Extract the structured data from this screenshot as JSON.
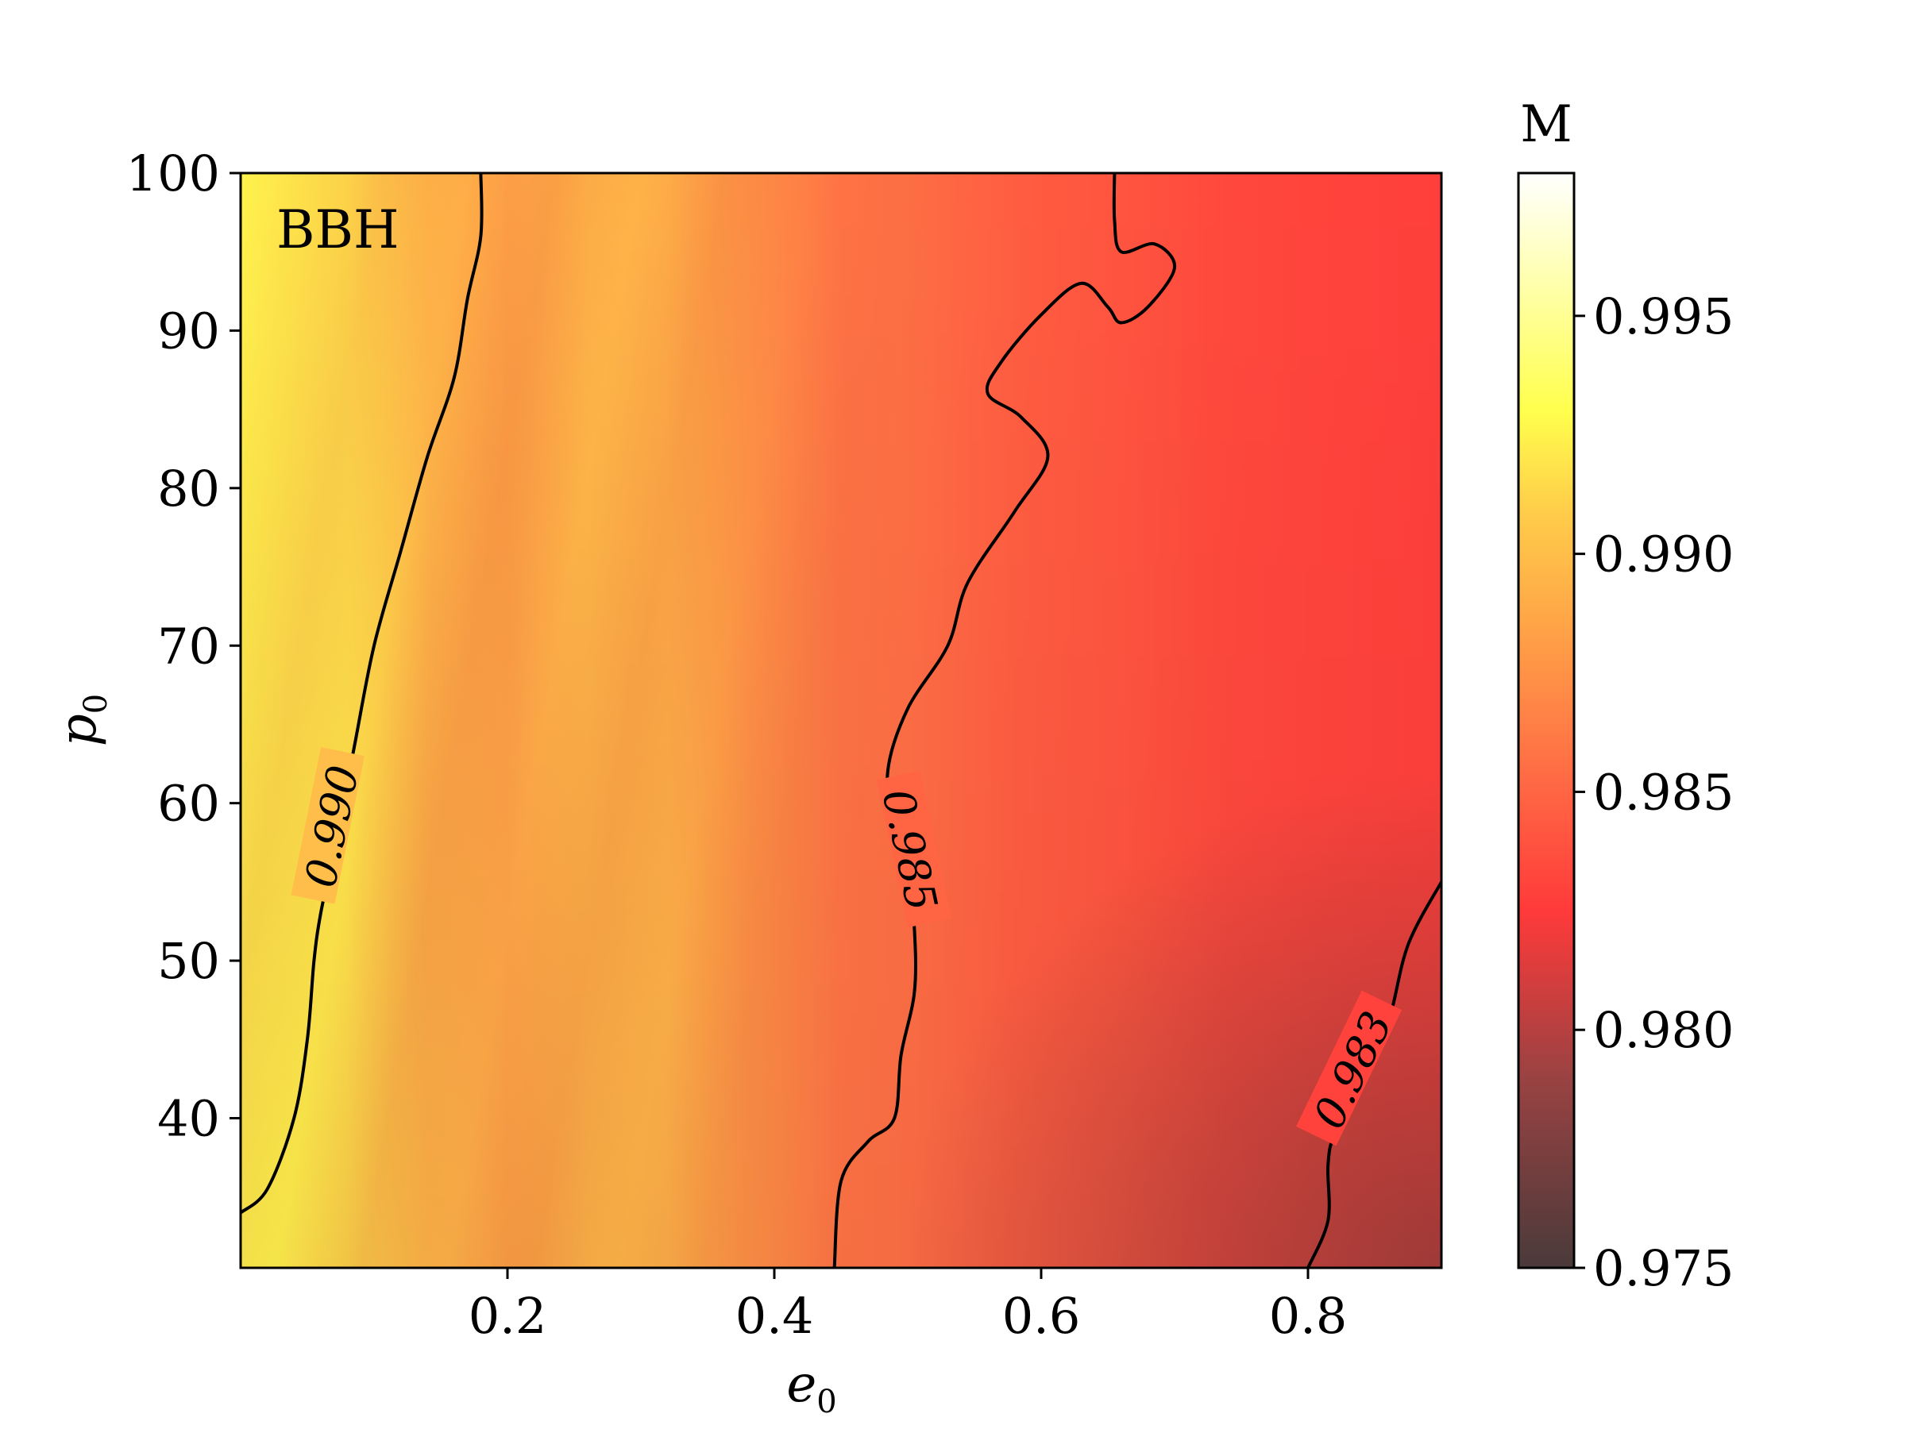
{
  "chart_data": {
    "type": "heatmap",
    "annotation": "BBH",
    "xlabel": {
      "main": "e",
      "sub": "0"
    },
    "ylabel": {
      "main": "p",
      "sub": "0"
    },
    "xlim": [
      0.0,
      0.9
    ],
    "ylim": [
      30.5,
      100
    ],
    "xticks": [
      0.2,
      0.4,
      0.6,
      0.8
    ],
    "xtick_labels": [
      "0.2",
      "0.4",
      "0.6",
      "0.8"
    ],
    "yticks": [
      40,
      50,
      60,
      70,
      80,
      90,
      100
    ],
    "ytick_labels": [
      "40",
      "50",
      "60",
      "70",
      "80",
      "90",
      "100"
    ],
    "colorbar": {
      "title": "M",
      "range": [
        0.975,
        0.998
      ],
      "ticks": [
        0.975,
        0.98,
        0.985,
        0.99,
        0.995
      ],
      "tick_labels": [
        "0.975",
        "0.980",
        "0.985",
        "0.990",
        "0.995"
      ],
      "colormap": [
        {
          "value": 0.975,
          "color": "#4a3a3a"
        },
        {
          "value": 0.979,
          "color": "#9a4242"
        },
        {
          "value": 0.9825,
          "color": "#ff3a3a"
        },
        {
          "value": 0.9855,
          "color": "#ff6e45"
        },
        {
          "value": 0.9885,
          "color": "#ffa447"
        },
        {
          "value": 0.991,
          "color": "#ffcf4a"
        },
        {
          "value": 0.993,
          "color": "#ffff4d"
        },
        {
          "value": 0.998,
          "color": "#ffffff"
        }
      ]
    },
    "contours": [
      {
        "level": 0.99,
        "label": "0.990",
        "points": [
          [
            0.0,
            34.0
          ],
          [
            0.02,
            35.5
          ],
          [
            0.04,
            40.0
          ],
          [
            0.05,
            45.0
          ],
          [
            0.055,
            50.0
          ],
          [
            0.06,
            53.0
          ],
          [
            0.07,
            57.0
          ],
          [
            0.085,
            63.5
          ],
          [
            0.1,
            70.0
          ],
          [
            0.12,
            76.0
          ],
          [
            0.14,
            82.0
          ],
          [
            0.16,
            87.0
          ],
          [
            0.17,
            92.0
          ],
          [
            0.18,
            96.0
          ],
          [
            0.18,
            100.0
          ]
        ],
        "label_at": [
          0.07,
          58.5
        ]
      },
      {
        "level": 0.985,
        "label": "0.985",
        "points": [
          [
            0.445,
            30.5
          ],
          [
            0.45,
            36.0
          ],
          [
            0.47,
            38.5
          ],
          [
            0.49,
            40.0
          ],
          [
            0.495,
            44.0
          ],
          [
            0.505,
            48.0
          ],
          [
            0.505,
            52.0
          ],
          [
            0.5,
            56.0
          ],
          [
            0.49,
            58.0
          ],
          [
            0.485,
            62.0
          ],
          [
            0.5,
            66.0
          ],
          [
            0.53,
            70.0
          ],
          [
            0.545,
            74.0
          ],
          [
            0.58,
            78.5
          ],
          [
            0.605,
            82.0
          ],
          [
            0.585,
            84.5
          ],
          [
            0.56,
            86.0
          ],
          [
            0.57,
            88.0
          ],
          [
            0.6,
            91.0
          ],
          [
            0.63,
            93.0
          ],
          [
            0.65,
            91.5
          ],
          [
            0.66,
            90.5
          ],
          [
            0.68,
            91.5
          ],
          [
            0.7,
            94.0
          ],
          [
            0.685,
            95.5
          ],
          [
            0.66,
            95.0
          ],
          [
            0.655,
            97.0
          ],
          [
            0.655,
            100.0
          ]
        ],
        "label_at": [
          0.5,
          57.0
        ]
      },
      {
        "level": 0.983,
        "label": "0.983",
        "points": [
          [
            0.8,
            30.5
          ],
          [
            0.815,
            33.5
          ],
          [
            0.815,
            37.0
          ],
          [
            0.82,
            39.0
          ],
          [
            0.84,
            42.0
          ],
          [
            0.86,
            46.0
          ],
          [
            0.875,
            51.0
          ],
          [
            0.9,
            55.0
          ]
        ],
        "label_at": [
          0.835,
          43.0
        ]
      }
    ]
  }
}
